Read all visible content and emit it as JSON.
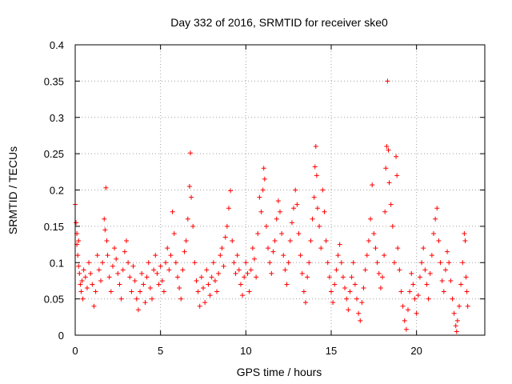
{
  "chart_data": {
    "type": "scatter",
    "title": "Day 332 of 2016, SRMTID for receiver ske0",
    "xlabel": "GPS time / hours",
    "ylabel": "SRMTID / TECUs",
    "xlim": [
      0,
      24
    ],
    "ylim": [
      0,
      0.4
    ],
    "x_ticks": [
      0,
      5,
      10,
      15,
      20
    ],
    "x_tick_labels": [
      "0",
      "5",
      "10",
      "15",
      "20"
    ],
    "y_ticks": [
      0,
      0.05,
      0.1,
      0.15,
      0.2,
      0.25,
      0.3,
      0.35,
      0.4
    ],
    "y_tick_labels": [
      "0",
      "0.05",
      "0.1",
      "0.15",
      "0.2",
      "0.25",
      "0.3",
      "0.35",
      "0.4"
    ],
    "grid": true,
    "marker": "+",
    "color": "#ff0000",
    "series": [
      {
        "name": "SRMTID",
        "points": [
          [
            0.0,
            0.18
          ],
          [
            0.05,
            0.155
          ],
          [
            0.1,
            0.14
          ],
          [
            0.1,
            0.125
          ],
          [
            0.15,
            0.11
          ],
          [
            0.2,
            0.13
          ],
          [
            0.2,
            0.095
          ],
          [
            0.25,
            0.085
          ],
          [
            0.3,
            0.07
          ],
          [
            0.35,
            0.06
          ],
          [
            0.4,
            0.075
          ],
          [
            0.45,
            0.05
          ],
          [
            0.5,
            0.09
          ],
          [
            0.6,
            0.08
          ],
          [
            0.7,
            0.065
          ],
          [
            0.8,
            0.1
          ],
          [
            0.9,
            0.085
          ],
          [
            1.0,
            0.07
          ],
          [
            1.1,
            0.04
          ],
          [
            1.2,
            0.06
          ],
          [
            1.3,
            0.11
          ],
          [
            1.4,
            0.09
          ],
          [
            1.5,
            0.075
          ],
          [
            1.6,
            0.1
          ],
          [
            1.7,
            0.16
          ],
          [
            1.75,
            0.145
          ],
          [
            1.8,
            0.203
          ],
          [
            1.85,
            0.13
          ],
          [
            1.9,
            0.11
          ],
          [
            2.0,
            0.08
          ],
          [
            2.1,
            0.06
          ],
          [
            2.2,
            0.095
          ],
          [
            2.3,
            0.12
          ],
          [
            2.4,
            0.105
          ],
          [
            2.5,
            0.085
          ],
          [
            2.6,
            0.07
          ],
          [
            2.7,
            0.05
          ],
          [
            2.8,
            0.09
          ],
          [
            2.9,
            0.115
          ],
          [
            3.0,
            0.13
          ],
          [
            3.1,
            0.1
          ],
          [
            3.2,
            0.08
          ],
          [
            3.3,
            0.06
          ],
          [
            3.4,
            0.095
          ],
          [
            3.5,
            0.075
          ],
          [
            3.6,
            0.05
          ],
          [
            3.7,
            0.035
          ],
          [
            3.8,
            0.06
          ],
          [
            3.9,
            0.085
          ],
          [
            4.0,
            0.07
          ],
          [
            4.1,
            0.045
          ],
          [
            4.2,
            0.08
          ],
          [
            4.3,
            0.1
          ],
          [
            4.4,
            0.065
          ],
          [
            4.5,
            0.05
          ],
          [
            4.6,
            0.09
          ],
          [
            4.7,
            0.11
          ],
          [
            4.8,
            0.085
          ],
          [
            4.9,
            0.07
          ],
          [
            5.0,
            0.095
          ],
          [
            5.1,
            0.075
          ],
          [
            5.2,
            0.06
          ],
          [
            5.3,
            0.1
          ],
          [
            5.4,
            0.12
          ],
          [
            5.5,
            0.09
          ],
          [
            5.6,
            0.11
          ],
          [
            5.7,
            0.17
          ],
          [
            5.8,
            0.14
          ],
          [
            5.9,
            0.1
          ],
          [
            6.0,
            0.08
          ],
          [
            6.1,
            0.065
          ],
          [
            6.2,
            0.05
          ],
          [
            6.3,
            0.09
          ],
          [
            6.4,
            0.115
          ],
          [
            6.5,
            0.13
          ],
          [
            6.6,
            0.16
          ],
          [
            6.7,
            0.205
          ],
          [
            6.75,
            0.251
          ],
          [
            6.8,
            0.19
          ],
          [
            6.9,
            0.15
          ],
          [
            7.0,
            0.1
          ],
          [
            7.1,
            0.075
          ],
          [
            7.2,
            0.06
          ],
          [
            7.3,
            0.04
          ],
          [
            7.4,
            0.08
          ],
          [
            7.5,
            0.065
          ],
          [
            7.6,
            0.045
          ],
          [
            7.7,
            0.09
          ],
          [
            7.8,
            0.07
          ],
          [
            7.9,
            0.055
          ],
          [
            8.0,
            0.08
          ],
          [
            8.1,
            0.1
          ],
          [
            8.2,
            0.075
          ],
          [
            8.3,
            0.06
          ],
          [
            8.4,
            0.085
          ],
          [
            8.5,
            0.11
          ],
          [
            8.6,
            0.12
          ],
          [
            8.7,
            0.095
          ],
          [
            8.8,
            0.135
          ],
          [
            8.9,
            0.15
          ],
          [
            9.0,
            0.175
          ],
          [
            9.1,
            0.199
          ],
          [
            9.2,
            0.13
          ],
          [
            9.3,
            0.1
          ],
          [
            9.4,
            0.085
          ],
          [
            9.5,
            0.11
          ],
          [
            9.6,
            0.09
          ],
          [
            9.7,
            0.07
          ],
          [
            9.8,
            0.055
          ],
          [
            9.9,
            0.08
          ],
          [
            10.0,
            0.1
          ],
          [
            10.1,
            0.085
          ],
          [
            10.2,
            0.06
          ],
          [
            10.3,
            0.09
          ],
          [
            10.4,
            0.12
          ],
          [
            10.5,
            0.105
          ],
          [
            10.6,
            0.08
          ],
          [
            10.7,
            0.14
          ],
          [
            10.8,
            0.19
          ],
          [
            10.9,
            0.17
          ],
          [
            11.0,
            0.2
          ],
          [
            11.05,
            0.23
          ],
          [
            11.1,
            0.215
          ],
          [
            11.2,
            0.15
          ],
          [
            11.3,
            0.12
          ],
          [
            11.4,
            0.1
          ],
          [
            11.5,
            0.085
          ],
          [
            11.6,
            0.115
          ],
          [
            11.7,
            0.13
          ],
          [
            11.8,
            0.16
          ],
          [
            11.9,
            0.185
          ],
          [
            12.0,
            0.17
          ],
          [
            12.1,
            0.14
          ],
          [
            12.2,
            0.11
          ],
          [
            12.3,
            0.09
          ],
          [
            12.4,
            0.07
          ],
          [
            12.5,
            0.1
          ],
          [
            12.6,
            0.13
          ],
          [
            12.7,
            0.155
          ],
          [
            12.8,
            0.175
          ],
          [
            12.9,
            0.2
          ],
          [
            13.0,
            0.18
          ],
          [
            13.1,
            0.14
          ],
          [
            13.2,
            0.11
          ],
          [
            13.3,
            0.085
          ],
          [
            13.4,
            0.06
          ],
          [
            13.5,
            0.045
          ],
          [
            13.6,
            0.08
          ],
          [
            13.7,
            0.1
          ],
          [
            13.8,
            0.13
          ],
          [
            13.9,
            0.16
          ],
          [
            14.0,
            0.19
          ],
          [
            14.05,
            0.232
          ],
          [
            14.1,
            0.26
          ],
          [
            14.15,
            0.22
          ],
          [
            14.2,
            0.175
          ],
          [
            14.3,
            0.15
          ],
          [
            14.4,
            0.12
          ],
          [
            14.5,
            0.2
          ],
          [
            14.6,
            0.17
          ],
          [
            14.7,
            0.13
          ],
          [
            14.8,
            0.1
          ],
          [
            14.9,
            0.08
          ],
          [
            15.0,
            0.06
          ],
          [
            15.1,
            0.045
          ],
          [
            15.2,
            0.07
          ],
          [
            15.3,
            0.09
          ],
          [
            15.4,
            0.11
          ],
          [
            15.5,
            0.125
          ],
          [
            15.6,
            0.1
          ],
          [
            15.7,
            0.08
          ],
          [
            15.8,
            0.065
          ],
          [
            15.9,
            0.05
          ],
          [
            16.0,
            0.035
          ],
          [
            16.1,
            0.06
          ],
          [
            16.2,
            0.08
          ],
          [
            16.3,
            0.1
          ],
          [
            16.4,
            0.07
          ],
          [
            16.5,
            0.05
          ],
          [
            16.6,
            0.03
          ],
          [
            16.7,
            0.02
          ],
          [
            16.8,
            0.045
          ],
          [
            16.9,
            0.065
          ],
          [
            17.0,
            0.09
          ],
          [
            17.1,
            0.11
          ],
          [
            17.2,
            0.13
          ],
          [
            17.3,
            0.16
          ],
          [
            17.4,
            0.207
          ],
          [
            17.5,
            0.14
          ],
          [
            17.6,
            0.12
          ],
          [
            17.7,
            0.1
          ],
          [
            17.8,
            0.085
          ],
          [
            17.9,
            0.065
          ],
          [
            18.0,
            0.08
          ],
          [
            18.1,
            0.11
          ],
          [
            18.15,
            0.17
          ],
          [
            18.2,
            0.23
          ],
          [
            18.25,
            0.26
          ],
          [
            18.3,
            0.35
          ],
          [
            18.35,
            0.255
          ],
          [
            18.4,
            0.21
          ],
          [
            18.5,
            0.18
          ],
          [
            18.6,
            0.15
          ],
          [
            18.7,
            0.1
          ],
          [
            18.8,
            0.246
          ],
          [
            18.85,
            0.22
          ],
          [
            18.9,
            0.12
          ],
          [
            19.0,
            0.09
          ],
          [
            19.1,
            0.06
          ],
          [
            19.2,
            0.04
          ],
          [
            19.3,
            0.02
          ],
          [
            19.4,
            0.008
          ],
          [
            19.5,
            0.035
          ],
          [
            19.6,
            0.06
          ],
          [
            19.7,
            0.085
          ],
          [
            19.8,
            0.07
          ],
          [
            19.9,
            0.05
          ],
          [
            20.0,
            0.03
          ],
          [
            20.1,
            0.055
          ],
          [
            20.2,
            0.08
          ],
          [
            20.3,
            0.1
          ],
          [
            20.4,
            0.12
          ],
          [
            20.5,
            0.09
          ],
          [
            20.6,
            0.07
          ],
          [
            20.7,
            0.05
          ],
          [
            20.8,
            0.085
          ],
          [
            20.9,
            0.11
          ],
          [
            21.0,
            0.14
          ],
          [
            21.1,
            0.16
          ],
          [
            21.2,
            0.175
          ],
          [
            21.3,
            0.13
          ],
          [
            21.4,
            0.1
          ],
          [
            21.5,
            0.075
          ],
          [
            21.6,
            0.06
          ],
          [
            21.7,
            0.09
          ],
          [
            21.8,
            0.115
          ],
          [
            21.9,
            0.1
          ],
          [
            22.0,
            0.075
          ],
          [
            22.1,
            0.05
          ],
          [
            22.2,
            0.03
          ],
          [
            22.3,
            0.013
          ],
          [
            22.35,
            0.005
          ],
          [
            22.4,
            0.02
          ],
          [
            22.5,
            0.04
          ],
          [
            22.6,
            0.07
          ],
          [
            22.7,
            0.1
          ],
          [
            22.8,
            0.14
          ],
          [
            22.85,
            0.13
          ],
          [
            22.9,
            0.08
          ],
          [
            22.95,
            0.06
          ],
          [
            23.0,
            0.04
          ]
        ]
      }
    ]
  }
}
